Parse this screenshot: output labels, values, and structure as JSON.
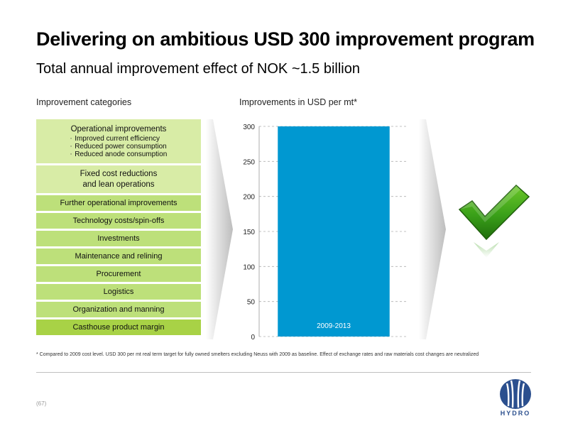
{
  "header": {
    "title": "Delivering on ambitious USD 300 improvement program",
    "subtitle": "Total annual improvement effect of NOK ~1.5 billion"
  },
  "categories": {
    "heading": "Improvement categories",
    "operational": {
      "label": "Operational improvements",
      "items": [
        "Improved current efficiency",
        "Reduced power consumption",
        "Reduced anode consumption"
      ]
    },
    "fixed_cost": [
      "Fixed cost reductions",
      "and lean operations"
    ],
    "items": [
      "Further operational improvements",
      "Technology costs/spin-offs",
      "Investments",
      "Maintenance and relining",
      "Procurement",
      "Logistics",
      "Organization and manning",
      "Casthouse product margin"
    ]
  },
  "colors": {
    "bar": "#0098d1",
    "light_green": "#d8eca6",
    "mid_green": "#bde07a",
    "dark_green": "#a8d246",
    "check_green": "#3aa019"
  },
  "chart_data": {
    "type": "bar",
    "title": "Improvements in USD per mt*",
    "categories": [
      "2009-2013"
    ],
    "values": [
      300
    ],
    "ylim": [
      0,
      300
    ],
    "yticks": [
      0,
      50,
      100,
      150,
      200,
      250,
      300
    ],
    "grid": true
  },
  "footnote": "* Compared to 2009 cost level. USD 300 per mt real term target for fully owned smelters excluding Neuss with 2009 as baseline. Effect of exchange rates and raw materials cost changes are neutralized",
  "footer": {
    "page": "(67)",
    "logo_text": "HYDRO"
  },
  "icons": {
    "checkmark": "check-icon",
    "arrow": "chevron-arrow-icon",
    "logo": "hydro-logo-icon"
  }
}
